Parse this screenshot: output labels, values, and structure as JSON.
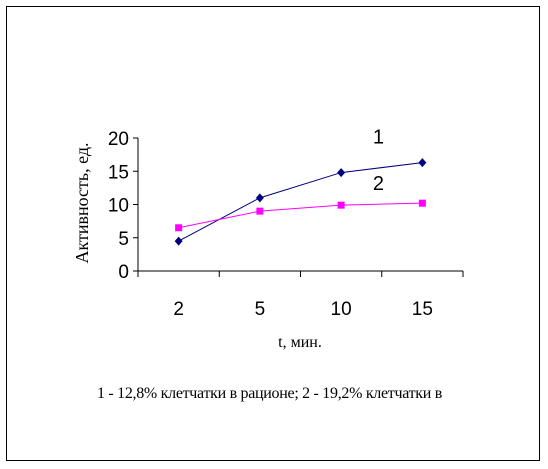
{
  "chart_data": {
    "type": "line",
    "categories": [
      "2",
      "5",
      "10",
      "15"
    ],
    "ylim": [
      0,
      20
    ],
    "yticks": [
      0,
      5,
      10,
      15,
      20
    ],
    "ylabel": "Активность, ед.",
    "xlabel": "t, мин.",
    "grid": false,
    "series": [
      {
        "name": "1",
        "values": [
          4.5,
          11.0,
          14.8,
          16.3
        ],
        "color": "#000080",
        "marker": "diamond"
      },
      {
        "name": "2",
        "values": [
          6.5,
          9.0,
          9.9,
          10.2
        ],
        "color": "#ff00ff",
        "marker": "square"
      }
    ],
    "caption": "1 - 12,8% клетчатки в рационе;   2 - 19,2% клетчатки в"
  }
}
